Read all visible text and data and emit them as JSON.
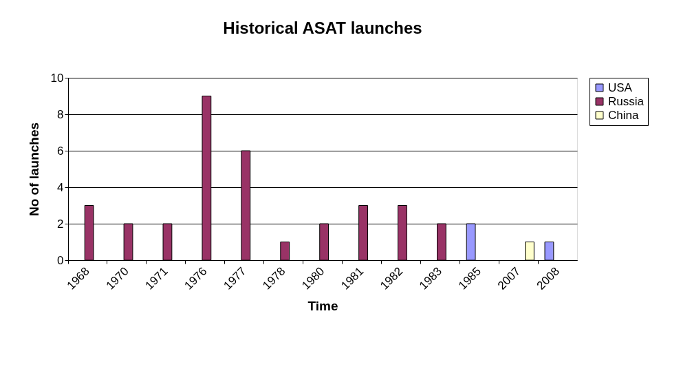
{
  "chart_data": {
    "type": "bar",
    "title": "Historical ASAT launches",
    "xlabel": "Time",
    "ylabel": "No of launches",
    "categories": [
      "1968",
      "1970",
      "1971",
      "1976",
      "1977",
      "1978",
      "1980",
      "1981",
      "1982",
      "1983",
      "1985",
      "2007",
      "2008"
    ],
    "series": [
      {
        "name": "USA",
        "color": "#9999ff",
        "values": [
          null,
          null,
          null,
          null,
          null,
          null,
          null,
          null,
          null,
          null,
          2,
          null,
          1
        ]
      },
      {
        "name": "Russia",
        "color": "#993366",
        "values": [
          3,
          2,
          2,
          9,
          6,
          1,
          2,
          3,
          3,
          2,
          null,
          null,
          null
        ]
      },
      {
        "name": "China",
        "color": "#ffffcc",
        "values": [
          null,
          null,
          null,
          null,
          null,
          null,
          null,
          null,
          null,
          null,
          null,
          1,
          null
        ]
      }
    ],
    "ylim": [
      0,
      10
    ],
    "yticks": [
      0,
      2,
      4,
      6,
      8,
      10
    ],
    "grid": "y",
    "legend": "right"
  }
}
